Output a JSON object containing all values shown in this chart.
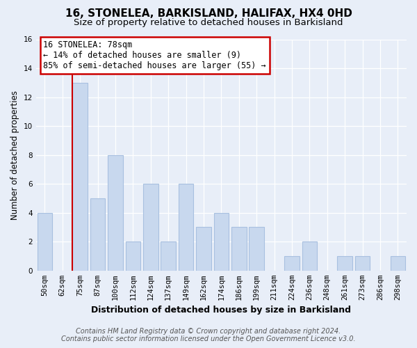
{
  "title": "16, STONELEA, BARKISLAND, HALIFAX, HX4 0HD",
  "subtitle": "Size of property relative to detached houses in Barkisland",
  "xlabel": "Distribution of detached houses by size in Barkisland",
  "ylabel": "Number of detached properties",
  "bar_labels": [
    "50sqm",
    "62sqm",
    "75sqm",
    "87sqm",
    "100sqm",
    "112sqm",
    "124sqm",
    "137sqm",
    "149sqm",
    "162sqm",
    "174sqm",
    "186sqm",
    "199sqm",
    "211sqm",
    "224sqm",
    "236sqm",
    "248sqm",
    "261sqm",
    "273sqm",
    "286sqm",
    "298sqm"
  ],
  "bar_values": [
    4,
    0,
    13,
    5,
    8,
    2,
    6,
    2,
    6,
    3,
    4,
    3,
    3,
    0,
    1,
    2,
    0,
    1,
    1,
    0,
    1
  ],
  "bar_color": "#c8d8ee",
  "bar_edge_color": "#a8c0e0",
  "property_line_idx": 2,
  "property_line_color": "#cc0000",
  "annotation_line1": "16 STONELEA: 78sqm",
  "annotation_line2": "← 14% of detached houses are smaller (9)",
  "annotation_line3": "85% of semi-detached houses are larger (55) →",
  "annotation_box_color": "#ffffff",
  "annotation_box_edge": "#cc0000",
  "ylim": [
    0,
    16
  ],
  "yticks": [
    0,
    2,
    4,
    6,
    8,
    10,
    12,
    14,
    16
  ],
  "footer_line1": "Contains HM Land Registry data © Crown copyright and database right 2024.",
  "footer_line2": "Contains public sector information licensed under the Open Government Licence v3.0.",
  "bg_color": "#e8eef8",
  "plot_bg_color": "#e8eef8",
  "grid_color": "#ffffff",
  "title_fontsize": 11,
  "subtitle_fontsize": 9.5,
  "xlabel_fontsize": 9,
  "ylabel_fontsize": 8.5,
  "tick_fontsize": 7.5,
  "footer_fontsize": 7,
  "ann_fontsize": 8.5
}
